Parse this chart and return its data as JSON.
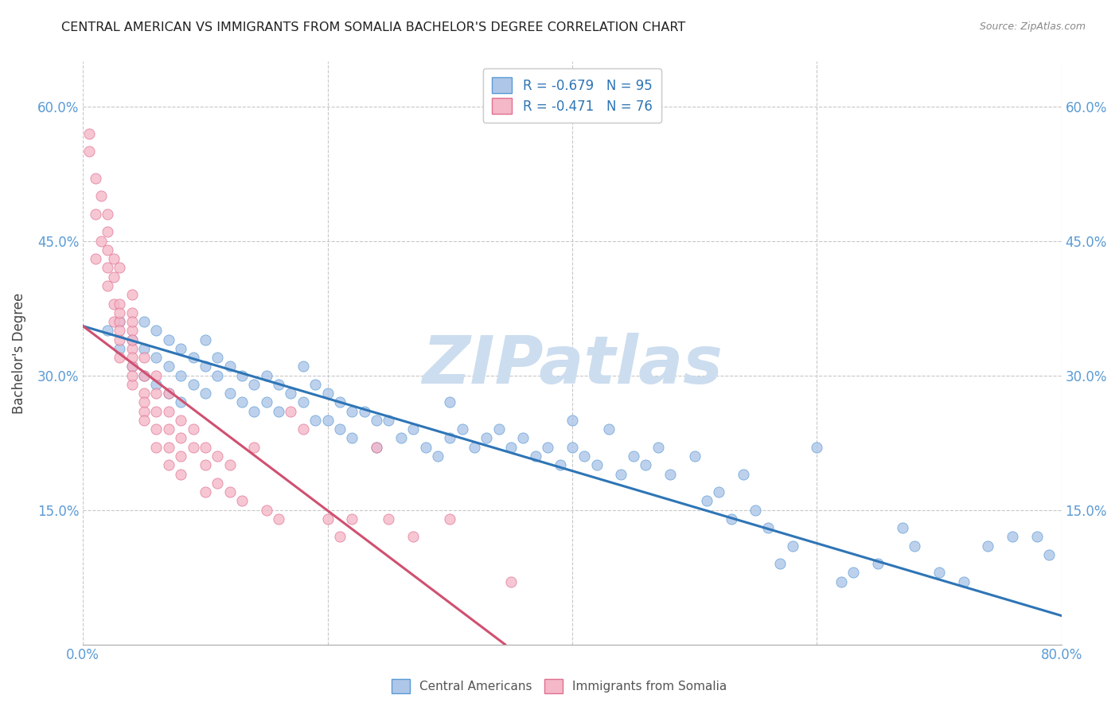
{
  "title": "CENTRAL AMERICAN VS IMMIGRANTS FROM SOMALIA BACHELOR'S DEGREE CORRELATION CHART",
  "source": "Source: ZipAtlas.com",
  "ylabel": "Bachelor's Degree",
  "watermark": "ZIPatlas",
  "blue_R": -0.679,
  "blue_N": 95,
  "pink_R": -0.471,
  "pink_N": 76,
  "blue_color": "#aec6e8",
  "blue_edge_color": "#5b9bd5",
  "blue_line_color": "#2e75b6",
  "pink_color": "#f4b8c8",
  "pink_edge_color": "#e07090",
  "pink_line_color": "#d05070",
  "xlim": [
    0.0,
    0.8
  ],
  "ylim": [
    0.0,
    0.65
  ],
  "yticks": [
    0.0,
    0.15,
    0.3,
    0.45,
    0.6
  ],
  "ytick_left_labels": [
    "",
    "15.0%",
    "30.0%",
    "45.0%",
    "60.0%"
  ],
  "ytick_right_labels": [
    "",
    "15.0%",
    "30.0%",
    "45.0%",
    "60.0%"
  ],
  "xticks": [
    0.0,
    0.2,
    0.4,
    0.6,
    0.8
  ],
  "xtick_labels": [
    "0.0%",
    "",
    "",
    "",
    "80.0%"
  ],
  "blue_scatter_x": [
    0.02,
    0.03,
    0.03,
    0.04,
    0.04,
    0.05,
    0.05,
    0.05,
    0.06,
    0.06,
    0.06,
    0.07,
    0.07,
    0.07,
    0.08,
    0.08,
    0.08,
    0.09,
    0.09,
    0.1,
    0.1,
    0.1,
    0.11,
    0.11,
    0.12,
    0.12,
    0.13,
    0.13,
    0.14,
    0.14,
    0.15,
    0.15,
    0.16,
    0.16,
    0.17,
    0.18,
    0.18,
    0.19,
    0.19,
    0.2,
    0.2,
    0.21,
    0.21,
    0.22,
    0.22,
    0.23,
    0.24,
    0.24,
    0.25,
    0.26,
    0.27,
    0.28,
    0.29,
    0.3,
    0.3,
    0.31,
    0.32,
    0.33,
    0.34,
    0.35,
    0.36,
    0.37,
    0.38,
    0.39,
    0.4,
    0.41,
    0.42,
    0.44,
    0.45,
    0.46,
    0.47,
    0.5,
    0.52,
    0.54,
    0.55,
    0.57,
    0.6,
    0.62,
    0.65,
    0.68,
    0.7,
    0.72,
    0.74,
    0.76,
    0.78,
    0.79,
    0.4,
    0.43,
    0.48,
    0.51,
    0.53,
    0.56,
    0.58,
    0.63,
    0.67
  ],
  "blue_scatter_y": [
    0.35,
    0.33,
    0.36,
    0.34,
    0.31,
    0.36,
    0.33,
    0.3,
    0.35,
    0.32,
    0.29,
    0.34,
    0.31,
    0.28,
    0.33,
    0.3,
    0.27,
    0.32,
    0.29,
    0.34,
    0.31,
    0.28,
    0.32,
    0.3,
    0.31,
    0.28,
    0.3,
    0.27,
    0.29,
    0.26,
    0.3,
    0.27,
    0.29,
    0.26,
    0.28,
    0.31,
    0.27,
    0.29,
    0.25,
    0.28,
    0.25,
    0.27,
    0.24,
    0.26,
    0.23,
    0.26,
    0.25,
    0.22,
    0.25,
    0.23,
    0.24,
    0.22,
    0.21,
    0.27,
    0.23,
    0.24,
    0.22,
    0.23,
    0.24,
    0.22,
    0.23,
    0.21,
    0.22,
    0.2,
    0.22,
    0.21,
    0.2,
    0.19,
    0.21,
    0.2,
    0.22,
    0.21,
    0.17,
    0.19,
    0.15,
    0.09,
    0.22,
    0.07,
    0.09,
    0.11,
    0.08,
    0.07,
    0.11,
    0.12,
    0.12,
    0.1,
    0.25,
    0.24,
    0.19,
    0.16,
    0.14,
    0.13,
    0.11,
    0.08,
    0.13
  ],
  "pink_scatter_x": [
    0.005,
    0.005,
    0.01,
    0.01,
    0.01,
    0.015,
    0.015,
    0.02,
    0.02,
    0.02,
    0.02,
    0.02,
    0.025,
    0.025,
    0.025,
    0.025,
    0.03,
    0.03,
    0.03,
    0.03,
    0.03,
    0.03,
    0.03,
    0.04,
    0.04,
    0.04,
    0.04,
    0.04,
    0.04,
    0.04,
    0.04,
    0.04,
    0.04,
    0.05,
    0.05,
    0.05,
    0.05,
    0.05,
    0.05,
    0.06,
    0.06,
    0.06,
    0.06,
    0.06,
    0.07,
    0.07,
    0.07,
    0.07,
    0.07,
    0.08,
    0.08,
    0.08,
    0.08,
    0.09,
    0.09,
    0.1,
    0.1,
    0.1,
    0.11,
    0.11,
    0.12,
    0.12,
    0.13,
    0.14,
    0.15,
    0.16,
    0.17,
    0.18,
    0.2,
    0.21,
    0.22,
    0.24,
    0.25,
    0.27,
    0.3,
    0.35
  ],
  "pink_scatter_y": [
    0.57,
    0.55,
    0.52,
    0.48,
    0.43,
    0.5,
    0.45,
    0.48,
    0.46,
    0.44,
    0.42,
    0.4,
    0.43,
    0.41,
    0.38,
    0.36,
    0.42,
    0.38,
    0.36,
    0.34,
    0.32,
    0.37,
    0.35,
    0.39,
    0.37,
    0.35,
    0.33,
    0.31,
    0.29,
    0.36,
    0.34,
    0.32,
    0.3,
    0.32,
    0.3,
    0.28,
    0.26,
    0.27,
    0.25,
    0.3,
    0.28,
    0.26,
    0.24,
    0.22,
    0.28,
    0.26,
    0.24,
    0.22,
    0.2,
    0.25,
    0.23,
    0.21,
    0.19,
    0.24,
    0.22,
    0.22,
    0.2,
    0.17,
    0.21,
    0.18,
    0.2,
    0.17,
    0.16,
    0.22,
    0.15,
    0.14,
    0.26,
    0.24,
    0.14,
    0.12,
    0.14,
    0.22,
    0.14,
    0.12,
    0.14,
    0.07
  ],
  "blue_trendline_x": [
    0.0,
    0.8
  ],
  "blue_trendline_y": [
    0.355,
    0.032
  ],
  "pink_trendline_x": [
    0.0,
    0.345
  ],
  "pink_trendline_y": [
    0.355,
    0.0
  ],
  "legend_blue_label": "R = -0.679   N = 95",
  "legend_pink_label": "R = -0.471   N = 76",
  "legend_blue_color": "#aec6e8",
  "legend_pink_color": "#f4b8c8",
  "bottom_legend_blue": "Central Americans",
  "bottom_legend_pink": "Immigrants from Somalia",
  "title_color": "#222222",
  "axis_label_color": "#444444",
  "tick_label_color": "#5b9bd5",
  "grid_color": "#c8c8c8",
  "watermark_color": "#ccddef",
  "watermark_fontsize": 60
}
